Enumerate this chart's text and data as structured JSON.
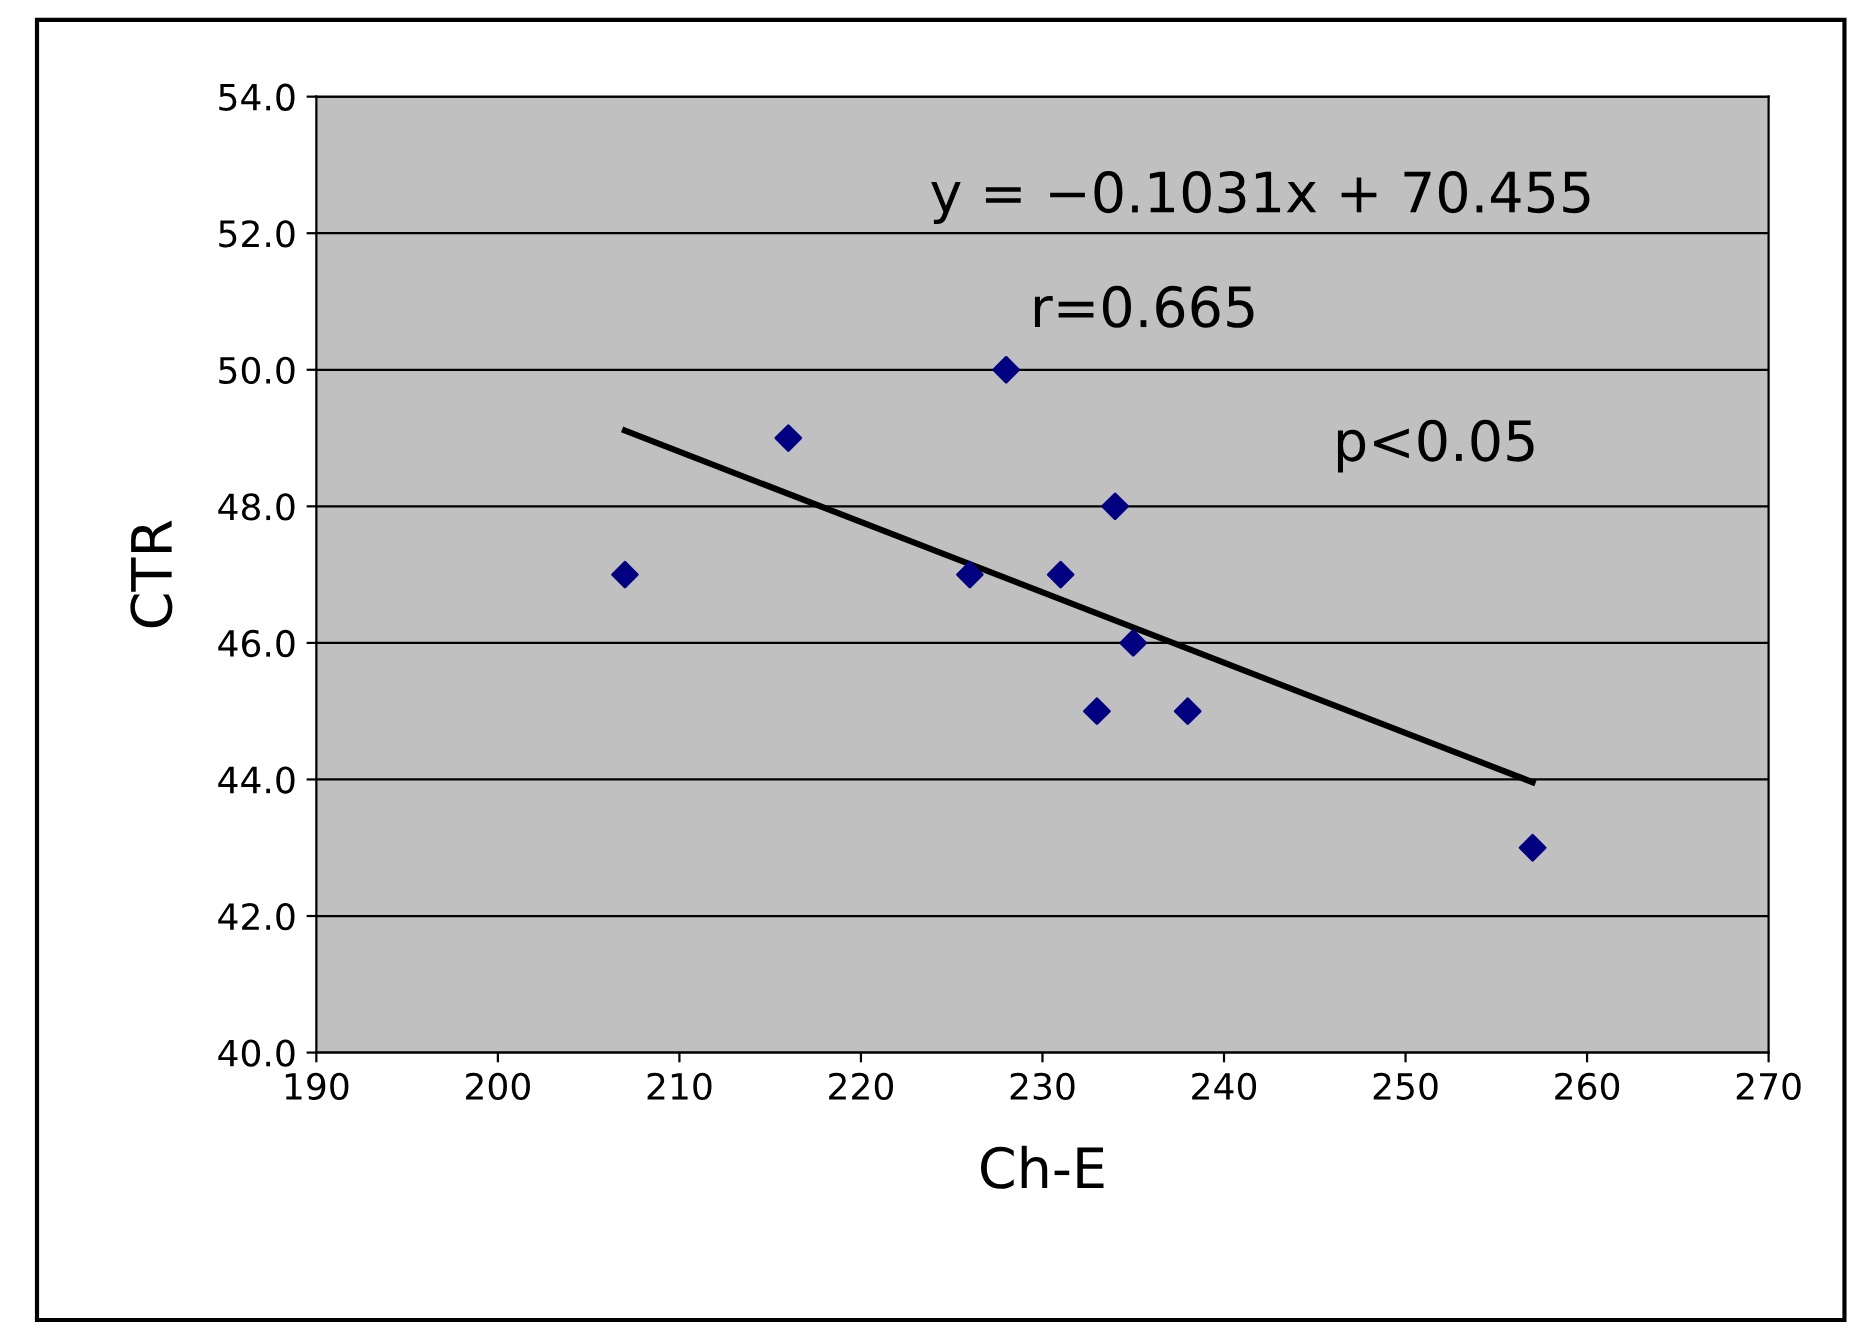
{
  "chart_data": {
    "type": "scatter",
    "xlabel": "Ch-E",
    "ylabel": "CTR",
    "series": [
      {
        "color": "#000080",
        "marker": "diamond",
        "x": [
          207,
          216,
          228,
          226,
          231,
          234,
          235,
          233,
          238,
          257
        ],
        "values": [
          47,
          49,
          50,
          47,
          47,
          48,
          46,
          45,
          45,
          43
        ]
      },
      {
        "type": "line",
        "color": "#000000",
        "line_style": "solid",
        "x": [
          207,
          257
        ],
        "values": [
          49.11,
          43.96
        ]
      }
    ],
    "xlim": [
      190,
      270
    ],
    "xticks": [
      190,
      200,
      210,
      220,
      230,
      240,
      250,
      260,
      270
    ],
    "ylim": [
      40,
      54
    ],
    "yticks": [
      {
        "value": 40,
        "label": "40.0"
      },
      {
        "value": 42,
        "label": "42.0"
      },
      {
        "value": 44,
        "label": "44.0"
      },
      {
        "value": 46,
        "label": "46.0"
      },
      {
        "value": 48,
        "label": "48.0"
      },
      {
        "value": 50,
        "label": "50.0"
      },
      {
        "value": 52,
        "label": "52.0"
      },
      {
        "value": 54,
        "label": "54.0"
      }
    ],
    "grid": "y",
    "legend": false,
    "annotations": [
      "y = −0.1031x + 70.455",
      "r=0.665",
      "p<0.05"
    ]
  }
}
